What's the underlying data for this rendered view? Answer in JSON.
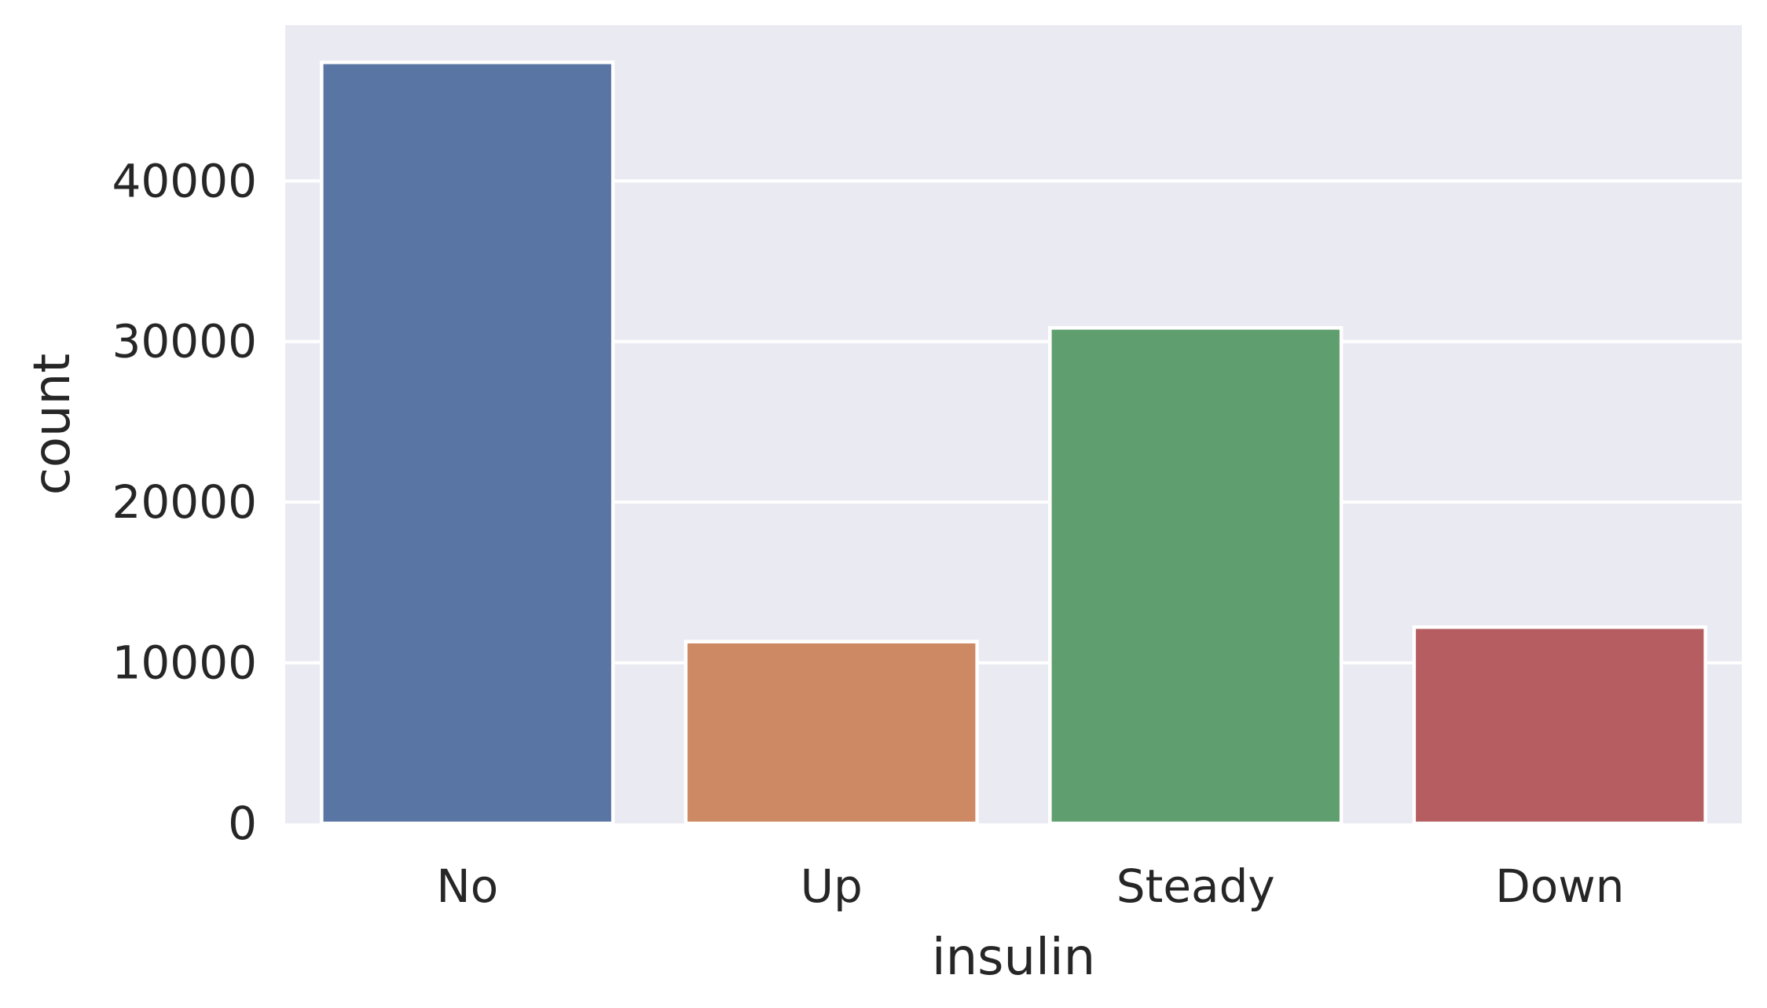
{
  "chart_data": {
    "type": "bar",
    "categories": [
      "No",
      "Up",
      "Steady",
      "Down"
    ],
    "values": [
      47383,
      11316,
      30849,
      12218
    ],
    "xlabel": "insulin",
    "ylabel": "count",
    "ylim": [
      0,
      49700
    ],
    "yticks": [
      0,
      10000,
      20000,
      30000,
      40000
    ],
    "ytick_labels": [
      "0",
      "10000",
      "20000",
      "30000",
      "40000"
    ],
    "colors": [
      "#5975a4",
      "#cc8963",
      "#5f9e6e",
      "#b55d60"
    ],
    "grid": true,
    "background": "#eaeaf2"
  }
}
